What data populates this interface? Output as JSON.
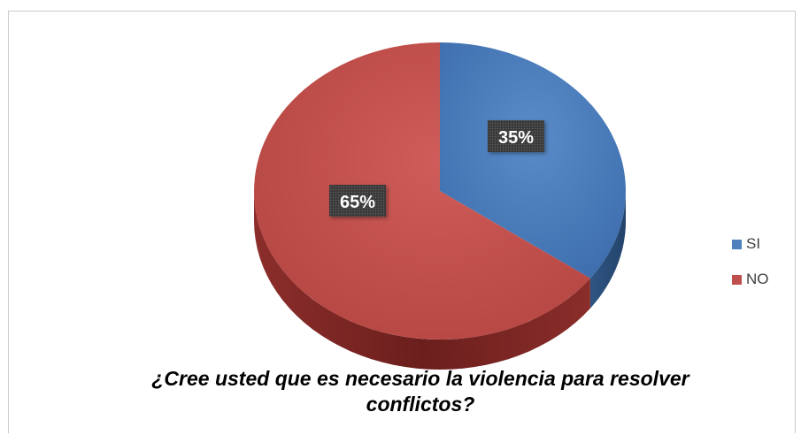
{
  "chart_data": {
    "type": "pie",
    "categories": [
      "SI",
      "NO"
    ],
    "values": [
      35,
      65
    ],
    "data_labels": [
      "35%",
      "65%"
    ],
    "colors": [
      "#4f81bd",
      "#c0504d"
    ],
    "title": "¿Cree usted que es necesario la violencia para resolver conflictos?",
    "legend": "right",
    "style": "3d"
  }
}
